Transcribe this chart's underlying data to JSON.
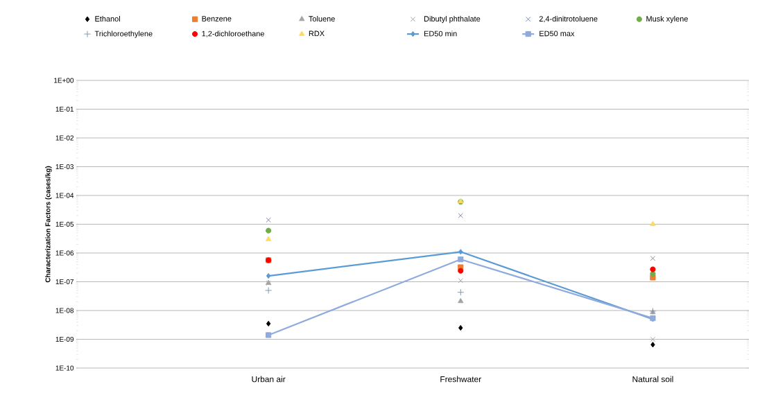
{
  "chart_data": {
    "type": "scatter",
    "ylabel": "Characterization Factors (cases/kg)",
    "categories": [
      "Urban air",
      "Freshwater",
      "Natural soil"
    ],
    "log": "y",
    "grid": "y",
    "legend": "top",
    "ylim": [
      1e-10,
      1
    ],
    "yticks": [
      {
        "value": 1e-10,
        "label": "1E-10"
      },
      {
        "value": 1e-09,
        "label": "1E-09"
      },
      {
        "value": 1e-08,
        "label": "1E-08"
      },
      {
        "value": 1e-07,
        "label": "1E-07"
      },
      {
        "value": 1e-06,
        "label": "1E-06"
      },
      {
        "value": 1e-05,
        "label": "1E-05"
      },
      {
        "value": 0.0001,
        "label": "1E-04"
      },
      {
        "value": 0.001,
        "label": "1E-03"
      },
      {
        "value": 0.01,
        "label": "1E-02"
      },
      {
        "value": 0.1,
        "label": "1E-01"
      },
      {
        "value": 1,
        "label": "1E+00"
      }
    ],
    "series": [
      {
        "name": "Ethanol",
        "color": "#000000",
        "marker": "diamond",
        "values": [
          3.5e-09,
          2.5e-09,
          6.5e-10
        ]
      },
      {
        "name": "Benzene",
        "color": "#ed7d31",
        "marker": "square",
        "values": [
          5.6e-07,
          3.2e-07,
          1.4e-07
        ]
      },
      {
        "name": "Toluene",
        "color": "#a5a5a5",
        "marker": "triangle",
        "values": [
          9e-08,
          2.1e-08,
          8.6e-09
        ]
      },
      {
        "name": "Dibutyl phthalate",
        "color": "#a5a5a5",
        "marker": "cross",
        "values": [
          9e-08,
          1.1e-07,
          1e-09
        ]
      },
      {
        "name": "2,4-dinitrotoluene",
        "color": "#7f8aa8",
        "marker": "cross",
        "values": [
          1.4e-05,
          2e-05,
          6.5e-07
        ]
      },
      {
        "name": "Musk xylene",
        "color": "#70ad47",
        "marker": "circle",
        "values": [
          6e-06,
          6e-05,
          1.9e-07
        ]
      },
      {
        "name": "Trichloroethylene",
        "color": "#8497b0",
        "marker": "plus",
        "values": [
          5e-08,
          4.3e-08,
          9.5e-09
        ]
      },
      {
        "name": "1,2-dichloroethane",
        "color": "#ff0000",
        "marker": "circle",
        "values": [
          5.6e-07,
          2.4e-07,
          2.7e-07
        ]
      },
      {
        "name": "RDX",
        "color": "#ffd966",
        "marker": "triangle",
        "values": [
          3e-06,
          6.2e-05,
          1e-05
        ]
      },
      {
        "name": "ED50 min",
        "type": "line",
        "color": "#5b9bd5",
        "marker": "diamond",
        "values": [
          1.6e-07,
          1.1e-06,
          5e-09
        ]
      },
      {
        "name": "ED50 max",
        "type": "line",
        "color": "#8faadc",
        "marker": "square",
        "values": [
          1.4e-09,
          6e-07,
          5.4e-09
        ]
      }
    ]
  }
}
